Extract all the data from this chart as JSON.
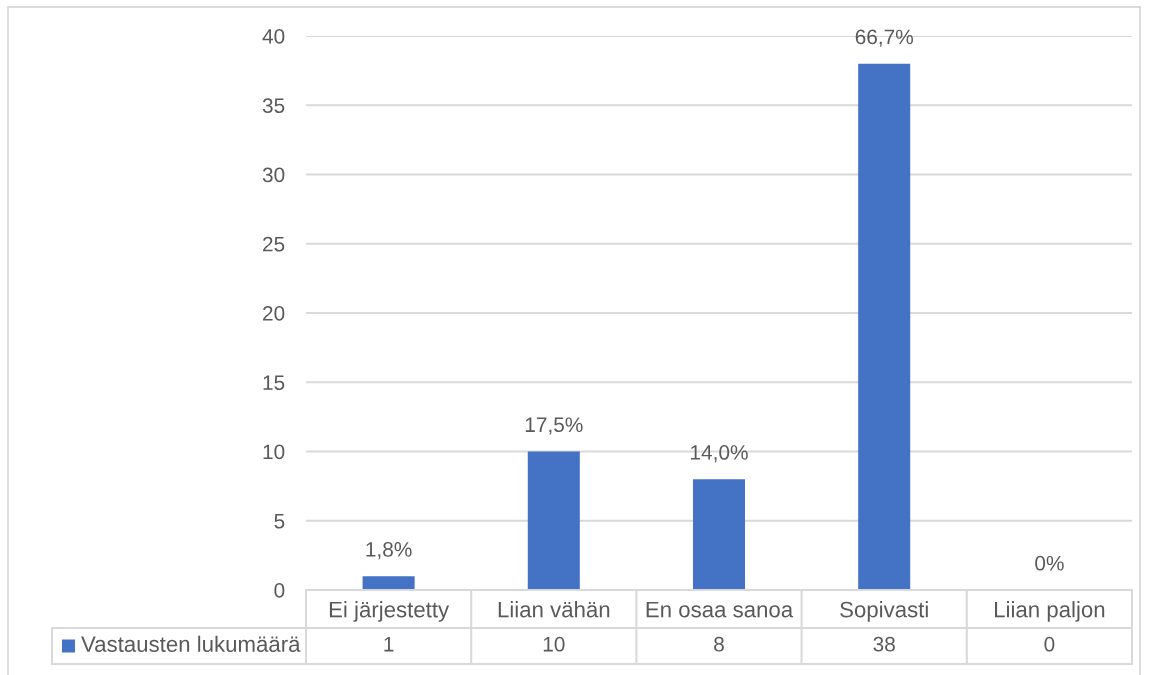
{
  "chart_data": {
    "type": "bar",
    "categories": [
      "Ei järjestetty",
      "Liian vähän",
      "En osaa sanoa",
      "Sopivasti",
      "Liian paljon"
    ],
    "series": [
      {
        "name": "Vastausten lukumäärä",
        "color": "#4472c4",
        "values": [
          1,
          10,
          8,
          38,
          0
        ]
      }
    ],
    "annotations": [
      {
        "text": "1,8%",
        "x": "Ei järjestetty",
        "y": 1
      },
      {
        "text": "17,5%",
        "x": "Liian vähän",
        "y": 10
      },
      {
        "text": "14,0%",
        "x": "En osaa sanoa",
        "y": 8
      },
      {
        "text": "66,7%",
        "x": "Sopivasti",
        "y": 38
      },
      {
        "text": "0%",
        "x": "Liian paljon",
        "y": 0
      }
    ],
    "ylim": [
      0,
      40
    ],
    "yticks": [
      0,
      5,
      10,
      15,
      20,
      25,
      30,
      35,
      40
    ],
    "grid": "y",
    "legend": "bottom",
    "data_labels": true
  }
}
